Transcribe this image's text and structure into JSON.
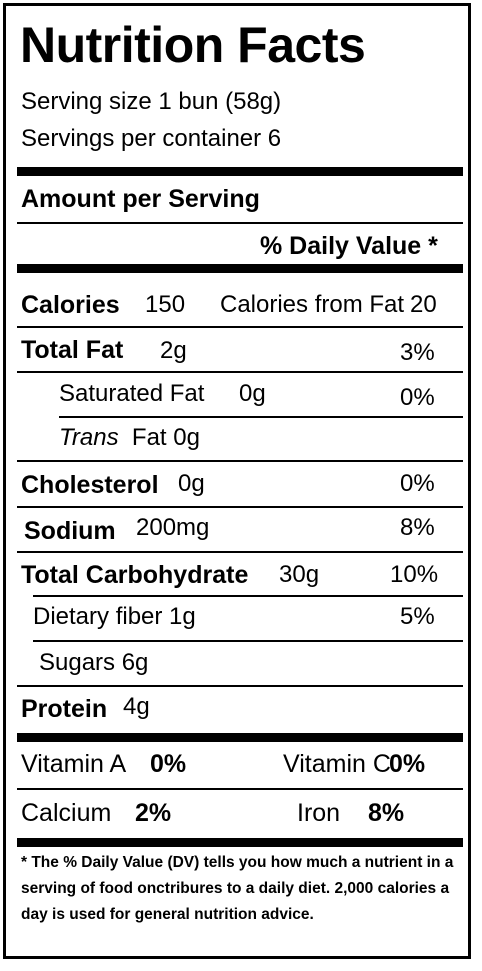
{
  "title": "Nutrition Facts",
  "serving_size": "Serving size 1 bun (58g)",
  "servings_per_container": "Servings per container 6",
  "amount_per_serving": "Amount per Serving",
  "daily_value_header": "% Daily Value *",
  "calories": {
    "label": "Calories",
    "value": "150",
    "from_fat_label": "Calories from Fat",
    "from_fat_value": "20"
  },
  "nutrients": {
    "total_fat": {
      "label": "Total Fat",
      "amount": "2g",
      "dv": "3%"
    },
    "saturated_fat": {
      "label": "Saturated Fat",
      "amount": "0g",
      "dv": "0%"
    },
    "trans_fat": {
      "label_italic": "Trans",
      "label_rest": "Fat 0g"
    },
    "cholesterol": {
      "label": "Cholesterol",
      "amount": "0g",
      "dv": "0%"
    },
    "sodium": {
      "label": "Sodium",
      "amount": "200mg",
      "dv": "8%"
    },
    "total_carbohydrate": {
      "label": "Total Carbohydrate",
      "amount": "30g",
      "dv": "10%"
    },
    "dietary_fiber": {
      "label": "Dietary fiber 1g",
      "dv": "5%"
    },
    "sugars": {
      "label": "Sugars 6g"
    },
    "protein": {
      "label": "Protein",
      "amount": "4g"
    }
  },
  "vitamins": {
    "vitamin_a": {
      "label": "Vitamin A",
      "value": "0%"
    },
    "vitamin_c": {
      "label": "Vitamin C",
      "value": "0%"
    },
    "calcium": {
      "label": "Calcium",
      "value": "2%"
    },
    "iron": {
      "label": "Iron",
      "value": "8%"
    }
  },
  "footnote": "* The % Daily Value (DV) tells you how much a nutrient in a serving of food onctribures to a daily diet. 2,000 calories a day is used for general nutrition advice."
}
